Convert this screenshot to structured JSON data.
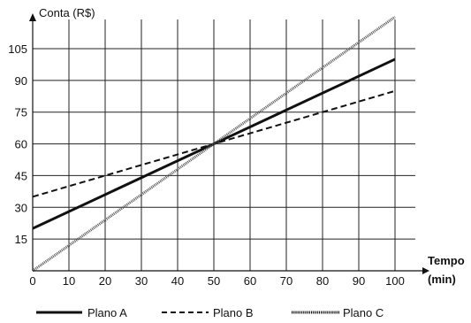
{
  "chart_data": {
    "type": "line",
    "ylabel": "Conta (R$)",
    "xlabel_line1": "Tempo",
    "xlabel_line2": "(min)",
    "x_ticks": [
      "0",
      "10",
      "20",
      "30",
      "40",
      "50",
      "60",
      "70",
      "80",
      "90",
      "100"
    ],
    "y_ticks": [
      "15",
      "30",
      "45",
      "60",
      "75",
      "90",
      "105"
    ],
    "xlim": [
      0,
      100
    ],
    "ylim": [
      0,
      105
    ],
    "grid": true,
    "legend_position": "bottom",
    "series": [
      {
        "name": "Plano A",
        "style": "solid",
        "x": [
          0,
          100
        ],
        "y": [
          20,
          100
        ]
      },
      {
        "name": "Plano B",
        "style": "dashed",
        "x": [
          0,
          100
        ],
        "y": [
          35,
          85
        ]
      },
      {
        "name": "Plano C",
        "style": "dotted",
        "x": [
          0,
          100
        ],
        "y": [
          0,
          120
        ]
      }
    ]
  }
}
